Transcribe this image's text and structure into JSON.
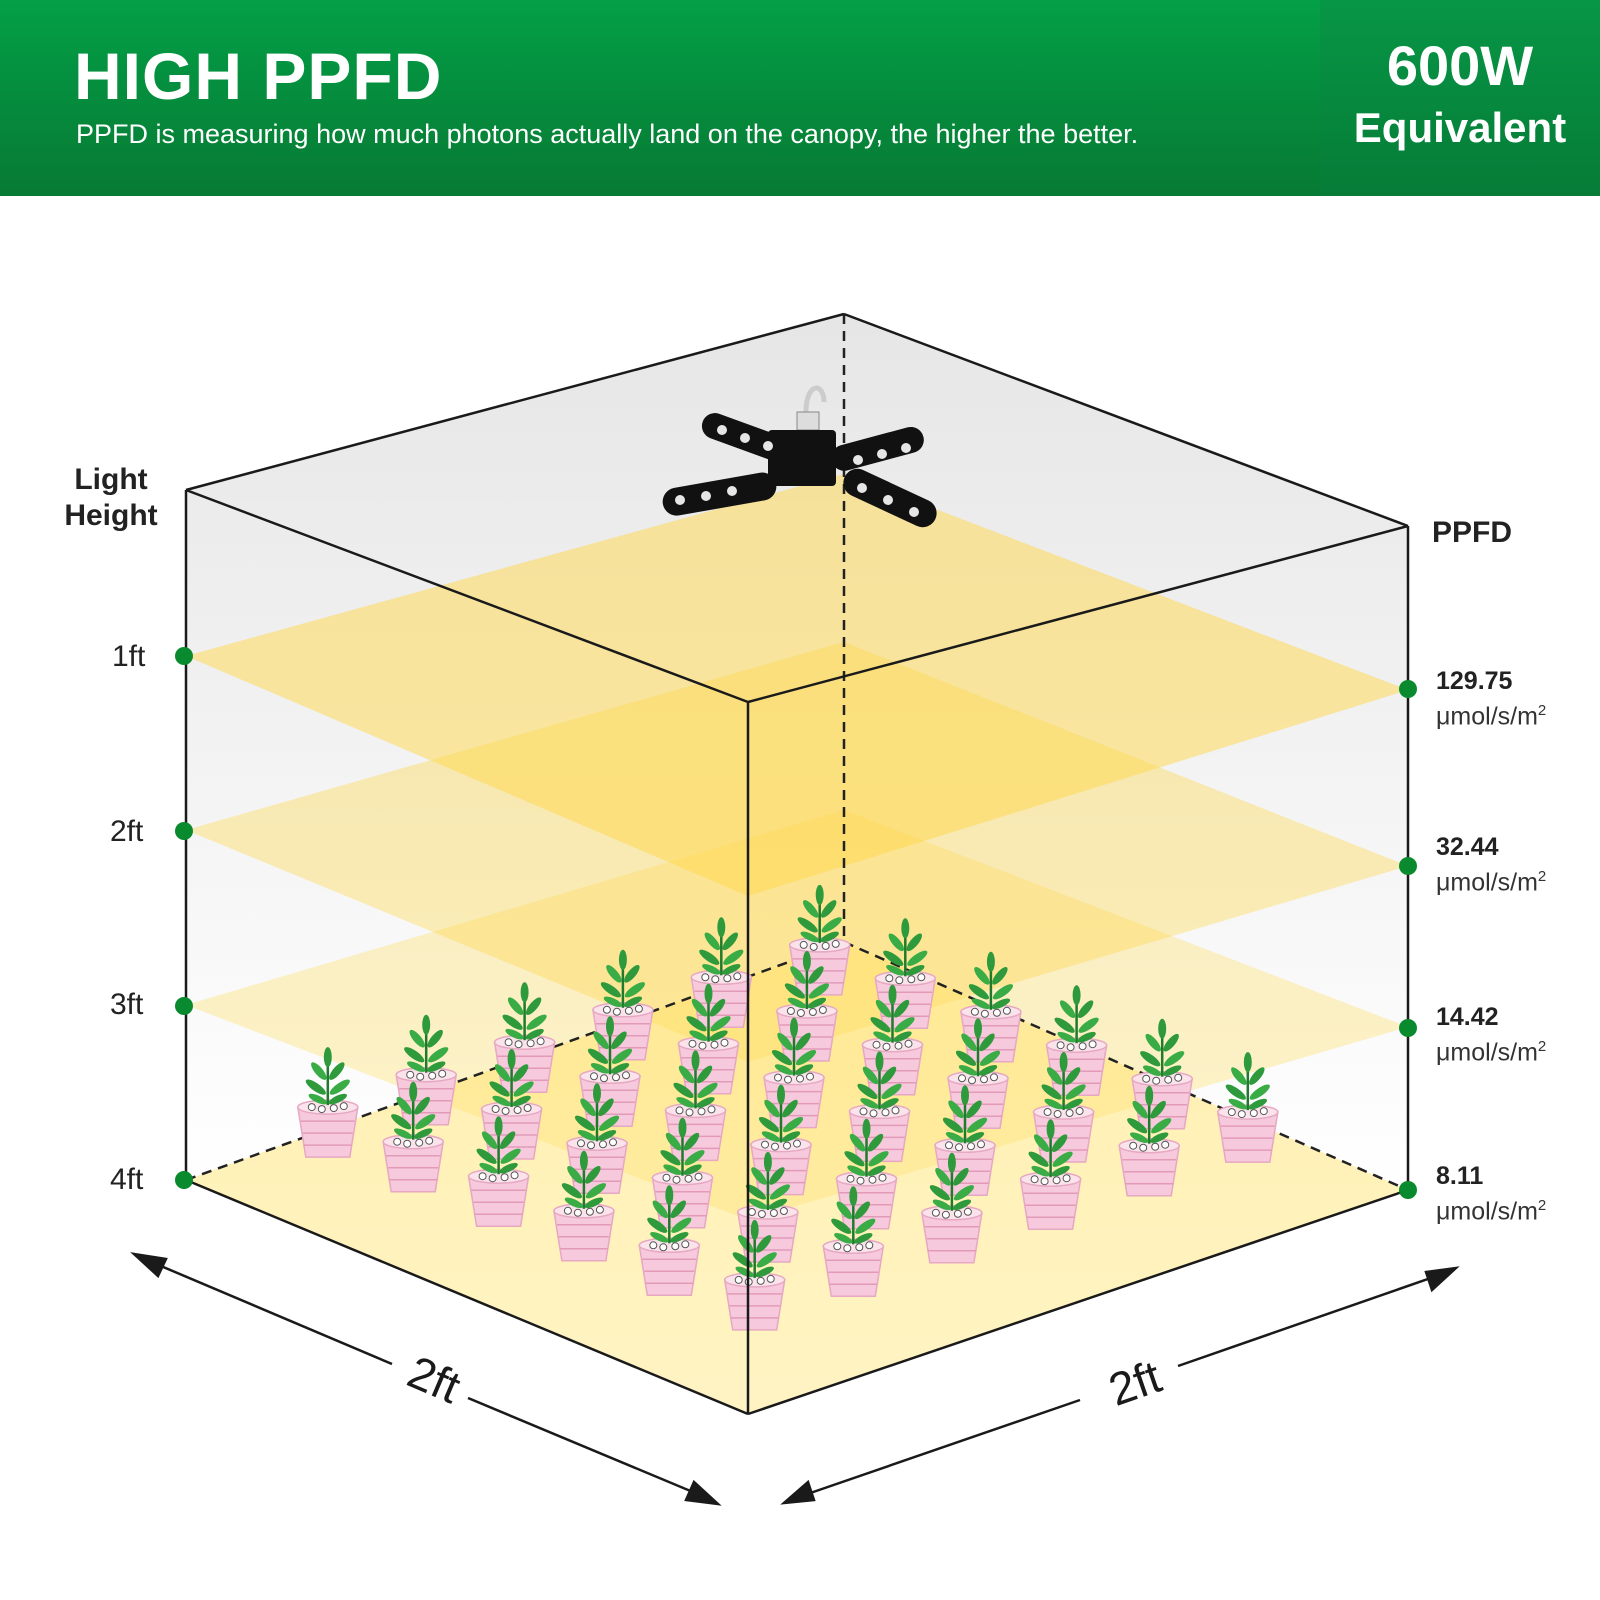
{
  "header": {
    "title": "HIGH PPFD",
    "subtitle": "PPFD is measuring how much photons actually land on the canopy, the higher the better.",
    "badge_value": "600W",
    "badge_label": "Equivalent"
  },
  "diagram": {
    "left_axis_title": "Light Height",
    "right_axis_title": "PPFD",
    "unit": "μmol/s/m",
    "unit_exponent": "2",
    "levels": [
      {
        "height": "1ft",
        "ppfd": "129.75"
      },
      {
        "height": "2ft",
        "ppfd": "32.44"
      },
      {
        "height": "3ft",
        "ppfd": "14.42"
      },
      {
        "height": "4ft",
        "ppfd": "8.11"
      }
    ],
    "width_label": "2ft",
    "depth_label": "2ft"
  },
  "colors": {
    "brand_green": "#058a3c",
    "marker_green": "#0a8a2e",
    "light_yellow": "#ffd84a",
    "pot_pink": "#f7c9dc",
    "leaf_green": "#2e9a3c"
  }
}
